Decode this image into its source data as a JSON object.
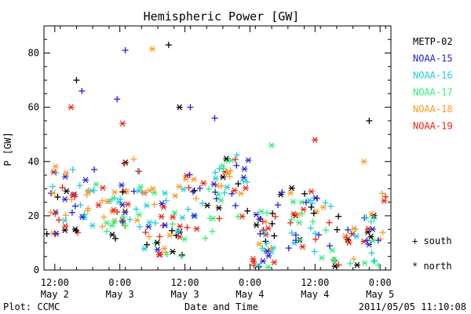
{
  "chart_data": {
    "type": "scatter",
    "title": "Hemispheric Power [GW]",
    "ylabel": "P [GW]",
    "xlabel": "Date and Time",
    "ylim": [
      0,
      90
    ],
    "xlim": [
      -2,
      62
    ],
    "yticks": [
      0,
      20,
      40,
      60,
      80
    ],
    "xticks": [
      {
        "x": 0,
        "time": "12:00",
        "date": "May 2"
      },
      {
        "x": 12,
        "time": "0:00",
        "date": "May 3"
      },
      {
        "x": 24,
        "time": "12:00",
        "date": "May 3"
      },
      {
        "x": 36,
        "time": "0:00",
        "date": "May 4"
      },
      {
        "x": 48,
        "time": "12:00",
        "date": "May 4"
      },
      {
        "x": 60,
        "time": "0:00",
        "date": "May 5"
      }
    ],
    "marker_legend": {
      "plus": "+ south",
      "star": "* north"
    },
    "footer_left": "Plot: CCMC",
    "footer_right": "2011/05/05 11:10:08",
    "series": [
      {
        "name": "METP-02",
        "color": "#000000"
      },
      {
        "name": "NOAA-15",
        "color": "#2222dd"
      },
      {
        "name": "NOAA-16",
        "color": "#22ccdd"
      },
      {
        "name": "NOAA-17",
        "color": "#33ee77"
      },
      {
        "name": "NOAA-18",
        "color": "#ff9922"
      },
      {
        "name": "NOAA-19",
        "color": "#ee2211"
      }
    ]
  }
}
